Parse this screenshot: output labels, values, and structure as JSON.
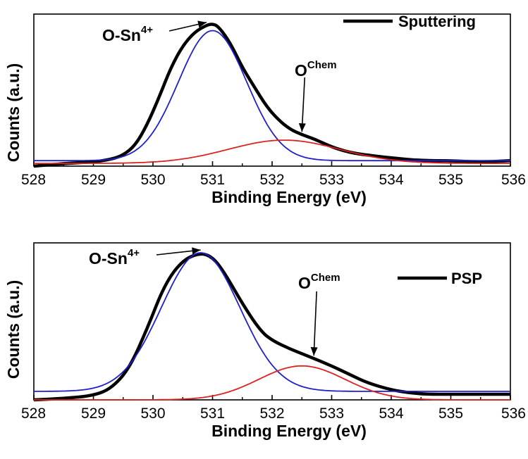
{
  "chart_data": [
    {
      "type": "line",
      "panel": "top",
      "xlabel": "Binding Energy (eV)",
      "ylabel": "Counts (a.u.)",
      "xlim": [
        528,
        536
      ],
      "ylim": [
        0,
        1.08
      ],
      "x_ticks": [
        "528",
        "529",
        "530",
        "531",
        "532",
        "533",
        "534",
        "535",
        "536"
      ],
      "legend": {
        "label": "Sputtering",
        "position": "top-right",
        "color": "#000000"
      },
      "annotations": [
        {
          "text": "O-Sn",
          "sup": "4+",
          "points_to_x": 530.9
        },
        {
          "text": "O",
          "sup": "Chem",
          "points_to_x": 532.5
        }
      ],
      "series": [
        {
          "name": "Sputtering (measured)",
          "color": "#000000",
          "role": "data",
          "x": [
            528.0,
            528.5,
            529.0,
            529.3,
            529.5,
            529.7,
            529.9,
            530.1,
            530.3,
            530.5,
            530.7,
            530.9,
            531.0,
            531.1,
            531.3,
            531.5,
            531.7,
            531.9,
            532.1,
            532.3,
            532.5,
            532.7,
            533.0,
            533.3,
            533.6,
            534.0,
            534.5,
            535.0,
            535.5,
            536.0
          ],
          "y": [
            0.0,
            0.02,
            0.03,
            0.05,
            0.08,
            0.15,
            0.3,
            0.5,
            0.72,
            0.88,
            0.98,
            1.03,
            1.04,
            1.02,
            0.9,
            0.72,
            0.58,
            0.44,
            0.34,
            0.27,
            0.23,
            0.2,
            0.14,
            0.1,
            0.08,
            0.06,
            0.04,
            0.04,
            0.03,
            0.04
          ]
        },
        {
          "name": "O-Sn4+ fit",
          "color": "#1f1fcc",
          "role": "fit",
          "peak_center": 531.0,
          "peak_height": 0.95,
          "peak_fwhm": 1.35,
          "baseline": 0.04
        },
        {
          "name": "O Chem fit",
          "color": "#dd2222",
          "role": "fit",
          "peak_center": 532.2,
          "peak_height": 0.17,
          "peak_fwhm": 2.2,
          "baseline": 0.02
        }
      ]
    },
    {
      "type": "line",
      "panel": "bottom",
      "xlabel": "Binding Energy (eV)",
      "ylabel": "Counts (a.u.)",
      "xlim": [
        528,
        536
      ],
      "ylim": [
        0,
        1.08
      ],
      "x_ticks": [
        "528",
        "529",
        "530",
        "531",
        "532",
        "533",
        "534",
        "535",
        "536"
      ],
      "legend": {
        "label": "PSP",
        "position": "top-right",
        "color": "#000000"
      },
      "annotations": [
        {
          "text": "O-Sn",
          "sup": "4+",
          "points_to_x": 530.8
        },
        {
          "text": "O",
          "sup": "Chem",
          "points_to_x": 532.7
        }
      ],
      "series": [
        {
          "name": "PSP (measured)",
          "color": "#000000",
          "role": "data",
          "x": [
            528.0,
            528.5,
            529.0,
            529.3,
            529.6,
            529.9,
            530.2,
            530.5,
            530.8,
            531.0,
            531.2,
            531.5,
            531.8,
            532.0,
            532.3,
            532.6,
            533.0,
            533.3,
            533.6,
            534.0,
            534.3,
            534.6,
            535.0,
            535.5,
            536.0
          ],
          "y": [
            0.0,
            0.01,
            0.03,
            0.08,
            0.22,
            0.5,
            0.82,
            0.99,
            1.04,
            1.01,
            0.9,
            0.68,
            0.49,
            0.42,
            0.36,
            0.31,
            0.24,
            0.18,
            0.12,
            0.07,
            0.05,
            0.04,
            0.04,
            0.04,
            0.04
          ]
        },
        {
          "name": "O-Sn4+ fit",
          "color": "#1f1fcc",
          "role": "fit",
          "peak_center": 530.8,
          "peak_height": 0.98,
          "peak_fwhm": 1.55,
          "baseline": 0.06
        },
        {
          "name": "O Chem fit",
          "color": "#dd2222",
          "role": "fit",
          "peak_center": 532.5,
          "peak_height": 0.24,
          "peak_fwhm": 1.7,
          "baseline": 0.0
        }
      ]
    }
  ]
}
